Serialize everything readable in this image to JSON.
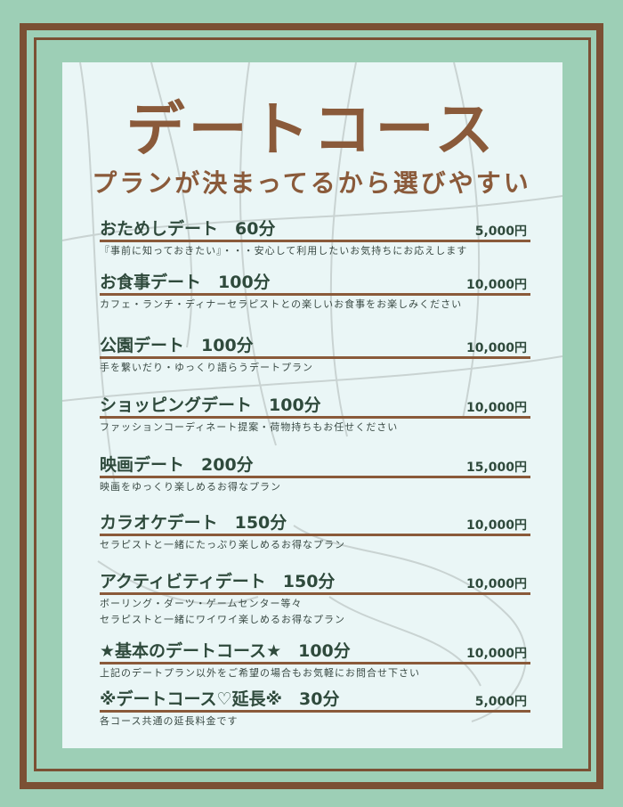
{
  "title": "デートコース",
  "subtitle": "プランが決まってるから選びやすい",
  "colors": {
    "background": "#9dcfb6",
    "frame": "#7b5034",
    "panel": "#eaf6f6",
    "accent": "#8a5a3a",
    "text": "#2f4a3c"
  },
  "items": [
    {
      "name": "おためしデート　60分",
      "price": "5,000円",
      "desc": [
        "『事前に知っておきたい』・・・安心して利用したいお気持ちにお応えします"
      ]
    },
    {
      "name": "お食事デート　100分",
      "price": "10,000円",
      "desc": [
        "カフェ・ランチ・ディナーセラピストとの楽しいお食事をお楽しみください"
      ]
    },
    {
      "name": "公園デート　100分",
      "price": "10,000円",
      "desc": [
        "手を繋いだり・ゆっくり語らうデートプラン"
      ]
    },
    {
      "name": "ショッピングデート　100分",
      "price": "10,000円",
      "desc": [
        "ファッションコーディネート提案・荷物持ちもお任せください"
      ]
    },
    {
      "name": "映画デート　200分",
      "price": "15,000円",
      "desc": [
        "映画をゆっくり楽しめるお得なプラン"
      ]
    },
    {
      "name": "カラオケデート　150分",
      "price": "10,000円",
      "desc": [
        "セラピストと一緒にたっぷり楽しめるお得なプラン"
      ]
    },
    {
      "name": "アクティビティデート　150分",
      "price": "10,000円",
      "desc": [
        "ボーリング・ダーツ・ゲームセンター等々",
        "セラピストと一緒にワイワイ楽しめるお得なプラン"
      ]
    },
    {
      "name": "★基本のデートコース★　100分",
      "price": "10,000円",
      "desc": [
        "上記のデートプラン以外をご希望の場合もお気軽にお問合せ下さい"
      ]
    },
    {
      "name": "※デートコース♡延長※　30分",
      "price": "5,000円",
      "desc": [
        "各コース共通の延長料金です"
      ]
    }
  ]
}
